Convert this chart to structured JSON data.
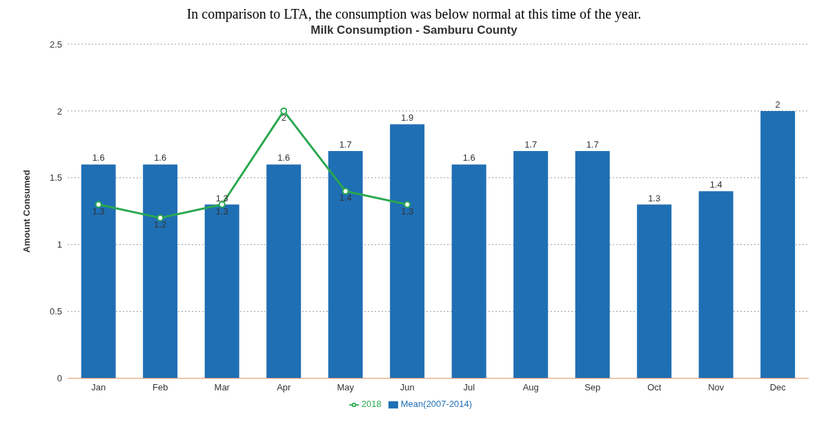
{
  "chart_data": {
    "type": "bar",
    "title": "Milk Consumption - Samburu County",
    "ylabel": "Amount Consumed",
    "annotations": [
      "In comparison to LTA, the consumption was below normal at this time of the year."
    ],
    "categories": [
      "Jan",
      "Feb",
      "Mar",
      "Apr",
      "May",
      "Jun",
      "Jul",
      "Aug",
      "Sep",
      "Oct",
      "Nov",
      "Dec"
    ],
    "series": [
      {
        "name": "Mean(2007-2014)",
        "color": "#1f6fb4",
        "values": [
          1.6,
          1.6,
          1.3,
          1.6,
          1.7,
          1.9,
          1.6,
          1.7,
          1.7,
          1.3,
          1.4,
          2
        ]
      },
      {
        "name": "2018",
        "type": "line",
        "color": "#2aa84f",
        "values": [
          1.3,
          1.2,
          1.3,
          2,
          1.4,
          1.3,
          null,
          null,
          null,
          null,
          null,
          null
        ]
      }
    ],
    "ylim": [
      0,
      2.5
    ],
    "yticks": [
      0,
      0.5,
      1,
      1.5,
      2,
      2.5
    ],
    "grid": "y",
    "legend": "bottom",
    "marker": "circle",
    "line_style": "solid",
    "data_labels": true
  }
}
